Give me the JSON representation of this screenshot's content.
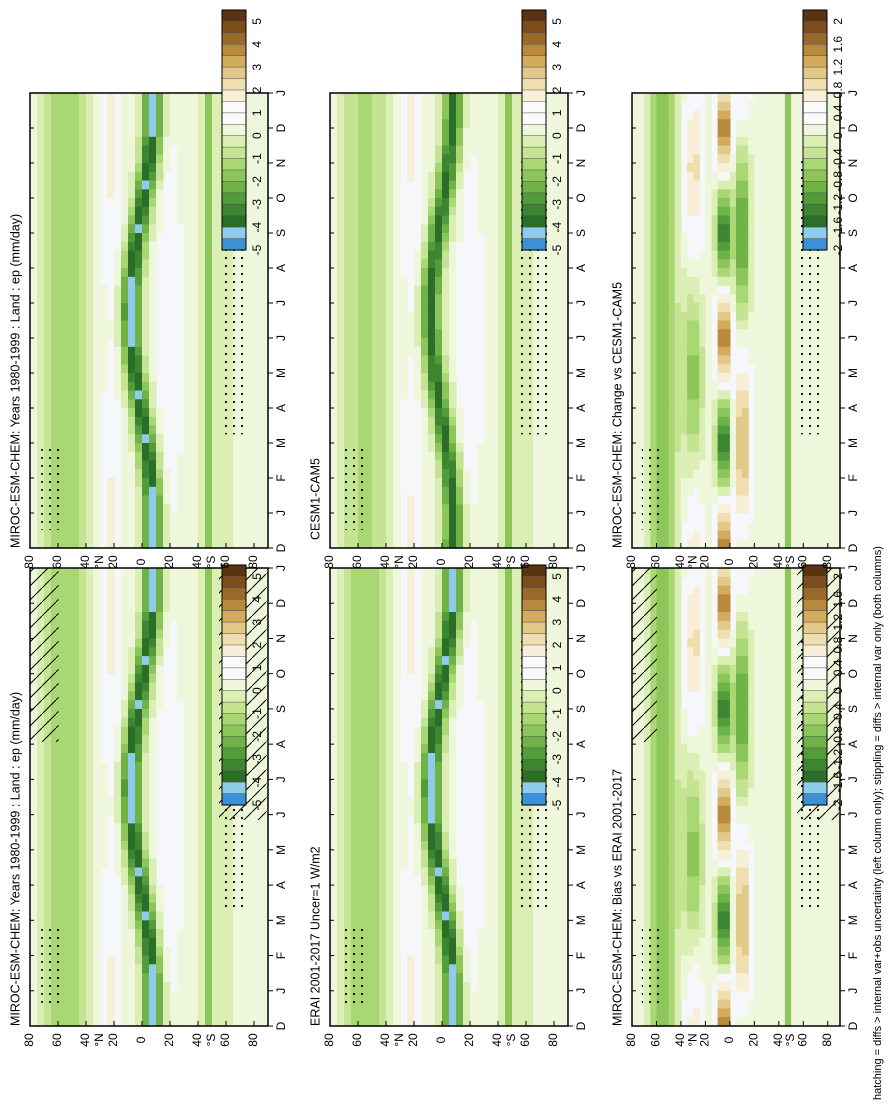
{
  "footer": "hatching = diffs > internal var+obs uncertainty (left column only); stippling = diffs > internal var only (both columns)",
  "month_ticks": [
    "D",
    "J",
    "F",
    "M",
    "A",
    "M",
    "J",
    "J",
    "A",
    "S",
    "O",
    "N",
    "D",
    "J"
  ],
  "lat_ticks": [
    "80",
    "60",
    "40",
    "°N",
    "20",
    "0",
    "20",
    "40",
    "°S",
    "60",
    "80"
  ],
  "scales": {
    "main": {
      "labels": [
        "5",
        "4",
        "3",
        "2",
        "1",
        "0",
        "-1",
        "-2",
        "-3",
        "-4",
        "-5"
      ],
      "colors": [
        "#5a3410",
        "#7d4e1c",
        "#9a6a2a",
        "#b98a3c",
        "#d2ab5c",
        "#e3c987",
        "#efdeaf",
        "#f7efd8",
        "#fafafa",
        "#fafafa",
        "#eef7dc",
        "#dbefb5",
        "#c4e494",
        "#a9d774",
        "#8cc65a",
        "#6fb247",
        "#539c3a",
        "#3c8531",
        "#2a6e29",
        "#8fcbea",
        "#3d8fd6"
      ]
    },
    "diff": {
      "labels": [
        "2",
        "1.6",
        "1.2",
        "0.8",
        "0.4",
        "0",
        "-0.4",
        "-0.8",
        "-1.2",
        "-1.6",
        "-2"
      ],
      "colors": [
        "#5a3410",
        "#7d4e1c",
        "#9a6a2a",
        "#b98a3c",
        "#d2ab5c",
        "#e3c987",
        "#efdeaf",
        "#f7efd8",
        "#fafafa",
        "#fafafa",
        "#eef7dc",
        "#dbefb5",
        "#c4e494",
        "#a9d774",
        "#8cc65a",
        "#6fb247",
        "#539c3a",
        "#3c8531",
        "#2a6e29",
        "#8fcbea",
        "#3d8fd6"
      ]
    }
  },
  "chart_data": [
    {
      "type": "heatmap",
      "title": "MIROC-ESM-CHEM: Years 1980-1999 : Land : ep (mm/day)",
      "scale": "main",
      "hatching": true,
      "stippling": true,
      "x": [
        "D",
        "J",
        "F",
        "M",
        "A",
        "M",
        "J",
        "J",
        "A",
        "S",
        "O",
        "N",
        "D",
        "J"
      ],
      "y": [
        "80N",
        "60N",
        "40N",
        "20N",
        "0",
        "20S",
        "40S",
        "60S",
        "80S"
      ],
      "colorbar_range": [
        -5,
        5
      ]
    },
    {
      "type": "heatmap",
      "title": "MIROC-ESM-CHEM: Years 1980-1999 : Land : ep (mm/day)",
      "scale": "main",
      "hatching": false,
      "stippling": true,
      "x": [
        "D",
        "J",
        "F",
        "M",
        "A",
        "M",
        "J",
        "J",
        "A",
        "S",
        "O",
        "N",
        "D",
        "J"
      ],
      "y": [
        "80N",
        "60N",
        "40N",
        "20N",
        "0",
        "20S",
        "40S",
        "60S",
        "80S"
      ],
      "colorbar_range": [
        -5,
        5
      ]
    },
    {
      "type": "heatmap",
      "title": "ERAI 2001-2017 Uncer=1 W/m2",
      "scale": "main",
      "hatching": false,
      "stippling": true,
      "x": [
        "D",
        "J",
        "F",
        "M",
        "A",
        "M",
        "J",
        "J",
        "A",
        "S",
        "O",
        "N",
        "D",
        "J"
      ],
      "y": [
        "80N",
        "60N",
        "40N",
        "20N",
        "0",
        "20S",
        "40S",
        "60S",
        "80S"
      ],
      "colorbar_range": [
        -5,
        5
      ]
    },
    {
      "type": "heatmap",
      "title": "CESM1-CAM5",
      "scale": "main",
      "hatching": false,
      "stippling": true,
      "x": [
        "D",
        "J",
        "F",
        "M",
        "A",
        "M",
        "J",
        "J",
        "A",
        "S",
        "O",
        "N",
        "D",
        "J"
      ],
      "y": [
        "80N",
        "60N",
        "40N",
        "20N",
        "0",
        "20S",
        "40S",
        "60S",
        "80S"
      ],
      "colorbar_range": [
        -5,
        5
      ]
    },
    {
      "type": "heatmap",
      "title": "MIROC-ESM-CHEM: Bias vs ERAI 2001-2017",
      "scale": "diff",
      "hatching": true,
      "stippling": true,
      "x": [
        "D",
        "J",
        "F",
        "M",
        "A",
        "M",
        "J",
        "J",
        "A",
        "S",
        "O",
        "N",
        "D",
        "J"
      ],
      "y": [
        "80N",
        "60N",
        "40N",
        "20N",
        "0",
        "20S",
        "40S",
        "60S",
        "80S"
      ],
      "colorbar_range": [
        -2,
        2
      ]
    },
    {
      "type": "heatmap",
      "title": "MIROC-ESM-CHEM: Change vs CESM1-CAM5",
      "scale": "diff",
      "hatching": false,
      "stippling": true,
      "x": [
        "D",
        "J",
        "F",
        "M",
        "A",
        "M",
        "J",
        "J",
        "A",
        "S",
        "O",
        "N",
        "D",
        "J"
      ],
      "y": [
        "80N",
        "60N",
        "40N",
        "20N",
        "0",
        "20S",
        "40S",
        "60S",
        "80S"
      ],
      "colorbar_range": [
        -2,
        2
      ]
    }
  ]
}
